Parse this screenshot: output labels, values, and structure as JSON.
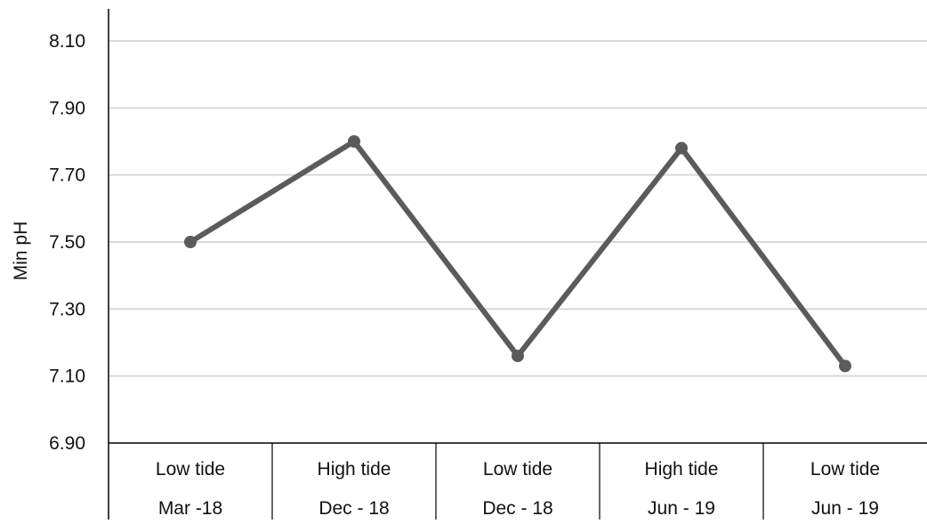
{
  "chart_data": {
    "type": "line",
    "title": "",
    "xlabel": "",
    "ylabel": "Min pH",
    "ylim": [
      6.9,
      8.2
    ],
    "yticks": [
      "6.90",
      "7.10",
      "7.30",
      "7.50",
      "7.70",
      "7.90",
      "8.10"
    ],
    "ytick_values": [
      6.9,
      7.1,
      7.3,
      7.5,
      7.7,
      7.9,
      8.1
    ],
    "categories": [
      {
        "line1": "Low tide",
        "line2": "Mar -18"
      },
      {
        "line1": "High tide",
        "line2": "Dec - 18"
      },
      {
        "line1": "Low tide",
        "line2": "Dec - 18"
      },
      {
        "line1": "High tide",
        "line2": "Jun - 19"
      },
      {
        "line1": "Low tide",
        "line2": "Jun - 19"
      }
    ],
    "series": [
      {
        "values": [
          7.5,
          7.8,
          7.16,
          7.78,
          7.13
        ]
      }
    ],
    "grid": true,
    "legend": "none",
    "colors": {
      "line": "#5b5b5b",
      "grid": "#d9d9d9",
      "axis": "#000000"
    }
  }
}
